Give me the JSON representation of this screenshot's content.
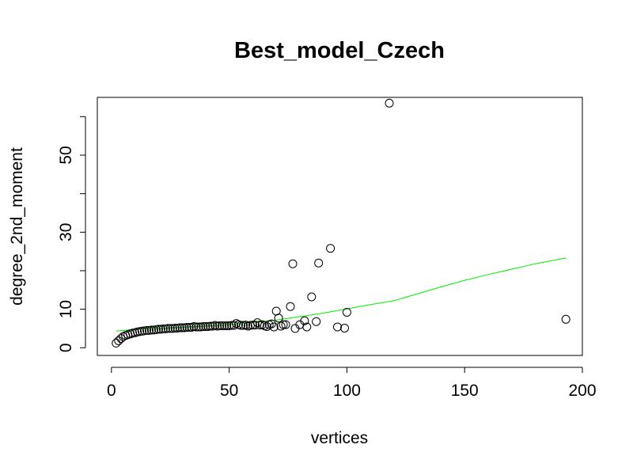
{
  "chart_data": {
    "type": "scatter",
    "title": "Best_model_Czech",
    "xlabel": "vertices",
    "ylabel": "degree_2nd_moment",
    "xlim": [
      -6,
      200
    ],
    "ylim": [
      -2,
      65
    ],
    "x_ticks": [
      0,
      50,
      100,
      150,
      200
    ],
    "x_tick_labels": [
      "0",
      "50",
      "100",
      "150",
      "200"
    ],
    "y_ticks": [
      0,
      10,
      20,
      30,
      40,
      50,
      60
    ],
    "y_tick_labels": [
      "0",
      "10",
      "",
      "30",
      "",
      "50",
      ""
    ],
    "grid": false,
    "colors": {
      "points": "#000000",
      "fit_line": "#00ee00"
    },
    "series": [
      {
        "kind": "points",
        "marker": "open-circle",
        "x": [
          2,
          3,
          4,
          5,
          6,
          7,
          8,
          9,
          10,
          11,
          12,
          13,
          14,
          15,
          16,
          17,
          18,
          19,
          20,
          21,
          22,
          23,
          24,
          25,
          26,
          27,
          28,
          29,
          30,
          31,
          32,
          33,
          34,
          35,
          36,
          37,
          38,
          39,
          40,
          41,
          42,
          43,
          44,
          45,
          46,
          47,
          48,
          49,
          50,
          51,
          52,
          53,
          54,
          55,
          56,
          57,
          58,
          59,
          60,
          61,
          62,
          63,
          64,
          65,
          66,
          67,
          68,
          69,
          70,
          71,
          72,
          73,
          74,
          76,
          77,
          78,
          80,
          82,
          83,
          85,
          87,
          88,
          93,
          96,
          99,
          100,
          118,
          193
        ],
        "y": [
          1.2,
          1.8,
          2.4,
          2.9,
          3.2,
          3.4,
          3.6,
          3.8,
          3.9,
          4.1,
          4.2,
          4.3,
          4.4,
          4.5,
          4.5,
          4.6,
          4.6,
          4.7,
          4.8,
          4.8,
          4.9,
          4.9,
          5.0,
          5.0,
          5.0,
          5.1,
          5.1,
          5.2,
          5.2,
          5.2,
          5.3,
          5.3,
          5.3,
          5.5,
          5.4,
          5.4,
          5.4,
          5.5,
          5.5,
          5.5,
          5.6,
          5.6,
          5.8,
          5.6,
          5.7,
          5.7,
          5.7,
          5.7,
          5.7,
          5.8,
          5.8,
          6.3,
          6.0,
          5.8,
          5.8,
          5.9,
          5.6,
          5.8,
          5.9,
          5.9,
          6.5,
          5.9,
          6.0,
          5.7,
          5.5,
          6.0,
          6.2,
          5.4,
          9.5,
          7.7,
          5.6,
          6.0,
          6.0,
          10.7,
          21.8,
          5.0,
          6.0,
          7.0,
          5.4,
          13.2,
          6.8,
          22.0,
          25.8,
          5.4,
          5.1,
          9.2,
          63.5,
          7.4
        ]
      },
      {
        "kind": "line",
        "x": [
          2,
          10,
          20,
          30,
          40,
          50,
          60,
          70,
          80,
          90,
          100,
          110,
          120,
          130,
          140,
          150,
          160,
          170,
          180,
          193
        ],
        "y": [
          4.3,
          4.8,
          5.1,
          5.4,
          5.7,
          6.1,
          6.6,
          7.2,
          8.1,
          9.0,
          10.1,
          11.2,
          12.2,
          14.0,
          15.8,
          17.5,
          19.0,
          20.4,
          21.8,
          23.3
        ]
      }
    ]
  }
}
